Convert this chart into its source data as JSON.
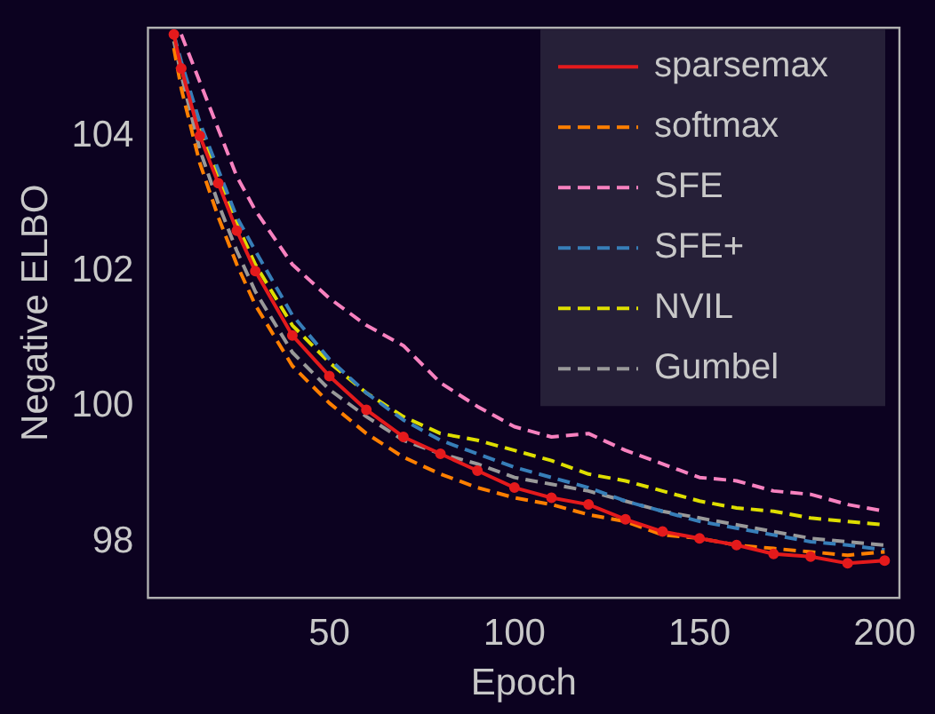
{
  "chart_data": {
    "type": "line",
    "xlabel": "Epoch",
    "ylabel": "Negative ELBO",
    "x": [
      8,
      10,
      15,
      20,
      25,
      30,
      40,
      50,
      60,
      70,
      80,
      90,
      100,
      110,
      120,
      130,
      140,
      150,
      160,
      170,
      180,
      190,
      200
    ],
    "xlim": [
      1,
      204
    ],
    "xticks": [
      50,
      100,
      150,
      200
    ],
    "ylim": [
      97.17,
      105.6
    ],
    "yticks": [
      98,
      100,
      102,
      104
    ],
    "grid": false,
    "legend": "top right",
    "series": [
      {
        "name": "sparsemax",
        "color": "#e41a1c",
        "line_style": "solid",
        "marker": "circle",
        "values": [
          105.5,
          105.0,
          104.0,
          103.3,
          102.6,
          102.0,
          101.05,
          100.45,
          99.95,
          99.55,
          99.3,
          99.05,
          98.8,
          98.65,
          98.55,
          98.33,
          98.15,
          98.05,
          97.95,
          97.82,
          97.78,
          97.68,
          97.72
        ]
      },
      {
        "name": "softmax",
        "color": "#ff7f00",
        "line_style": "dashed",
        "marker": "none",
        "values": [
          105.3,
          104.7,
          103.6,
          102.8,
          102.1,
          101.5,
          100.6,
          100.05,
          99.6,
          99.25,
          99.0,
          98.8,
          98.65,
          98.55,
          98.4,
          98.3,
          98.1,
          98.05,
          97.95,
          97.9,
          97.85,
          97.8,
          97.85
        ]
      },
      {
        "name": "SFE",
        "color": "#f781bf",
        "line_style": "dashed",
        "marker": "none",
        "values": [
          null,
          105.5,
          104.8,
          104.1,
          103.4,
          102.9,
          102.1,
          101.6,
          101.2,
          100.9,
          100.35,
          100.0,
          99.7,
          99.55,
          99.6,
          99.35,
          99.15,
          98.95,
          98.9,
          98.75,
          98.7,
          98.55,
          98.45
        ]
      },
      {
        "name": "SFE+",
        "color": "#377eb8",
        "line_style": "dashed",
        "marker": "none",
        "values": [
          105.5,
          105.1,
          104.2,
          103.5,
          102.8,
          102.3,
          101.35,
          100.7,
          100.2,
          99.8,
          99.5,
          99.3,
          99.1,
          98.95,
          98.8,
          98.6,
          98.45,
          98.3,
          98.2,
          98.1,
          98.0,
          97.95,
          97.88
        ]
      },
      {
        "name": "NVIL",
        "color": "#dede00",
        "line_style": "dashed",
        "marker": "none",
        "values": [
          105.5,
          105.0,
          104.1,
          103.4,
          102.7,
          102.1,
          101.2,
          100.65,
          100.2,
          99.85,
          99.6,
          99.5,
          99.35,
          99.2,
          99.0,
          98.9,
          98.75,
          98.6,
          98.5,
          98.45,
          98.35,
          98.3,
          98.25
        ]
      },
      {
        "name": "Gumbel",
        "color": "#999999",
        "line_style": "dashed",
        "marker": "none",
        "values": [
          105.4,
          104.9,
          103.8,
          103.0,
          102.3,
          101.7,
          100.8,
          100.25,
          99.85,
          99.5,
          99.3,
          99.15,
          98.95,
          98.85,
          98.75,
          98.6,
          98.45,
          98.35,
          98.25,
          98.15,
          98.05,
          98.0,
          97.95
        ]
      }
    ]
  }
}
